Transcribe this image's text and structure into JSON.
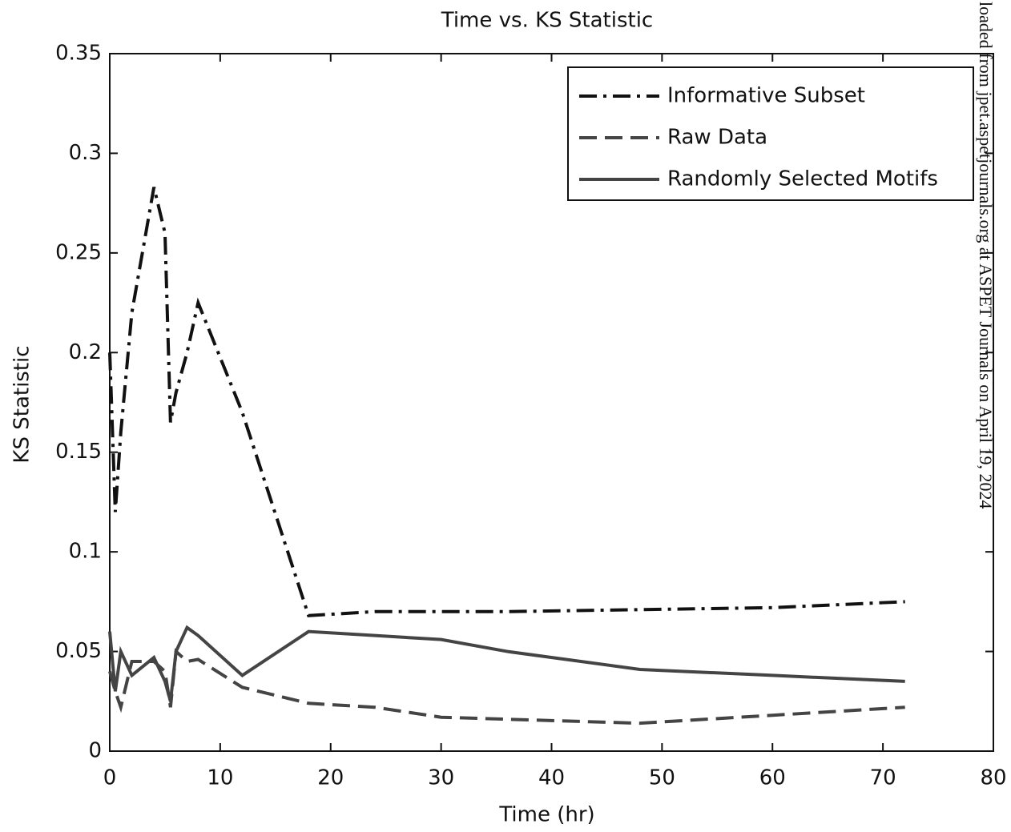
{
  "chart_data": {
    "type": "line",
    "title": "Time vs. KS Statistic",
    "xlabel": "Time (hr)",
    "ylabel": "KS Statistic",
    "x": [
      0,
      0.5,
      1,
      2,
      4,
      5,
      5.5,
      6,
      7,
      8,
      12,
      18,
      24,
      30,
      36,
      48,
      60,
      72
    ],
    "series": [
      {
        "name": "Informative Subset",
        "color": "#111111",
        "dash": "dashdot",
        "values": [
          0.2,
          0.12,
          0.16,
          0.22,
          0.283,
          0.26,
          0.165,
          0.18,
          0.2,
          0.225,
          0.17,
          0.068,
          0.07,
          0.07,
          0.07,
          0.071,
          0.072,
          0.075
        ]
      },
      {
        "name": "Raw Data",
        "color": "#444444",
        "dash": "dashed",
        "values": [
          0.04,
          0.03,
          0.022,
          0.045,
          0.045,
          0.04,
          0.022,
          0.05,
          0.045,
          0.046,
          0.032,
          0.024,
          0.022,
          0.017,
          0.016,
          0.014,
          0.018,
          0.022
        ]
      },
      {
        "name": "Randomly Selected Motifs",
        "color": "#444444",
        "dash": "solid",
        "values": [
          0.06,
          0.03,
          0.05,
          0.038,
          0.047,
          0.035,
          0.025,
          0.05,
          0.062,
          0.058,
          0.038,
          0.06,
          0.058,
          0.056,
          0.05,
          0.041,
          0.038,
          0.035
        ]
      }
    ],
    "xlim": [
      0,
      80
    ],
    "xticks": [
      0,
      10,
      20,
      30,
      40,
      50,
      60,
      70,
      80
    ],
    "ylim": [
      0,
      0.35
    ],
    "yticks": [
      0,
      0.05,
      0.1,
      0.15,
      0.2,
      0.25,
      0.3,
      0.35
    ],
    "legend": "upper-right",
    "watermark": "loaded from jpet.aspetjournals.org at ASPET Journals on April 19, 2024"
  }
}
